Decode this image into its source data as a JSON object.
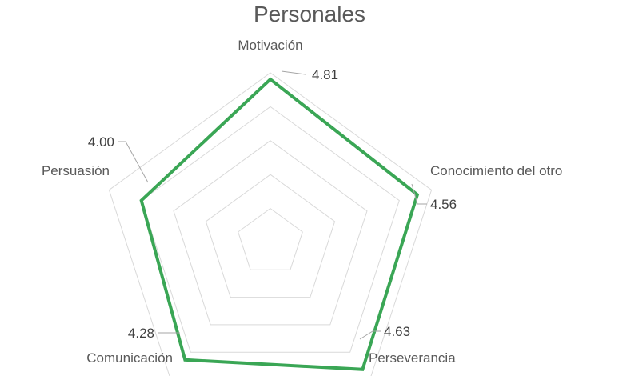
{
  "chart_data": {
    "type": "radar",
    "title": "Personales",
    "categories": [
      "Motivación",
      "Conocimiento del otro",
      "Perseverancia",
      "Comunicación",
      "Persuasión"
    ],
    "series": [
      {
        "values": [
          4.81,
          4.56,
          4.63,
          4.28,
          4.0
        ],
        "color": "#3aa655"
      }
    ],
    "data_labels": [
      "4.81",
      "4.56",
      "4.63",
      "4.28",
      "4.00"
    ],
    "rlim": [
      0,
      5
    ],
    "grid": true
  }
}
